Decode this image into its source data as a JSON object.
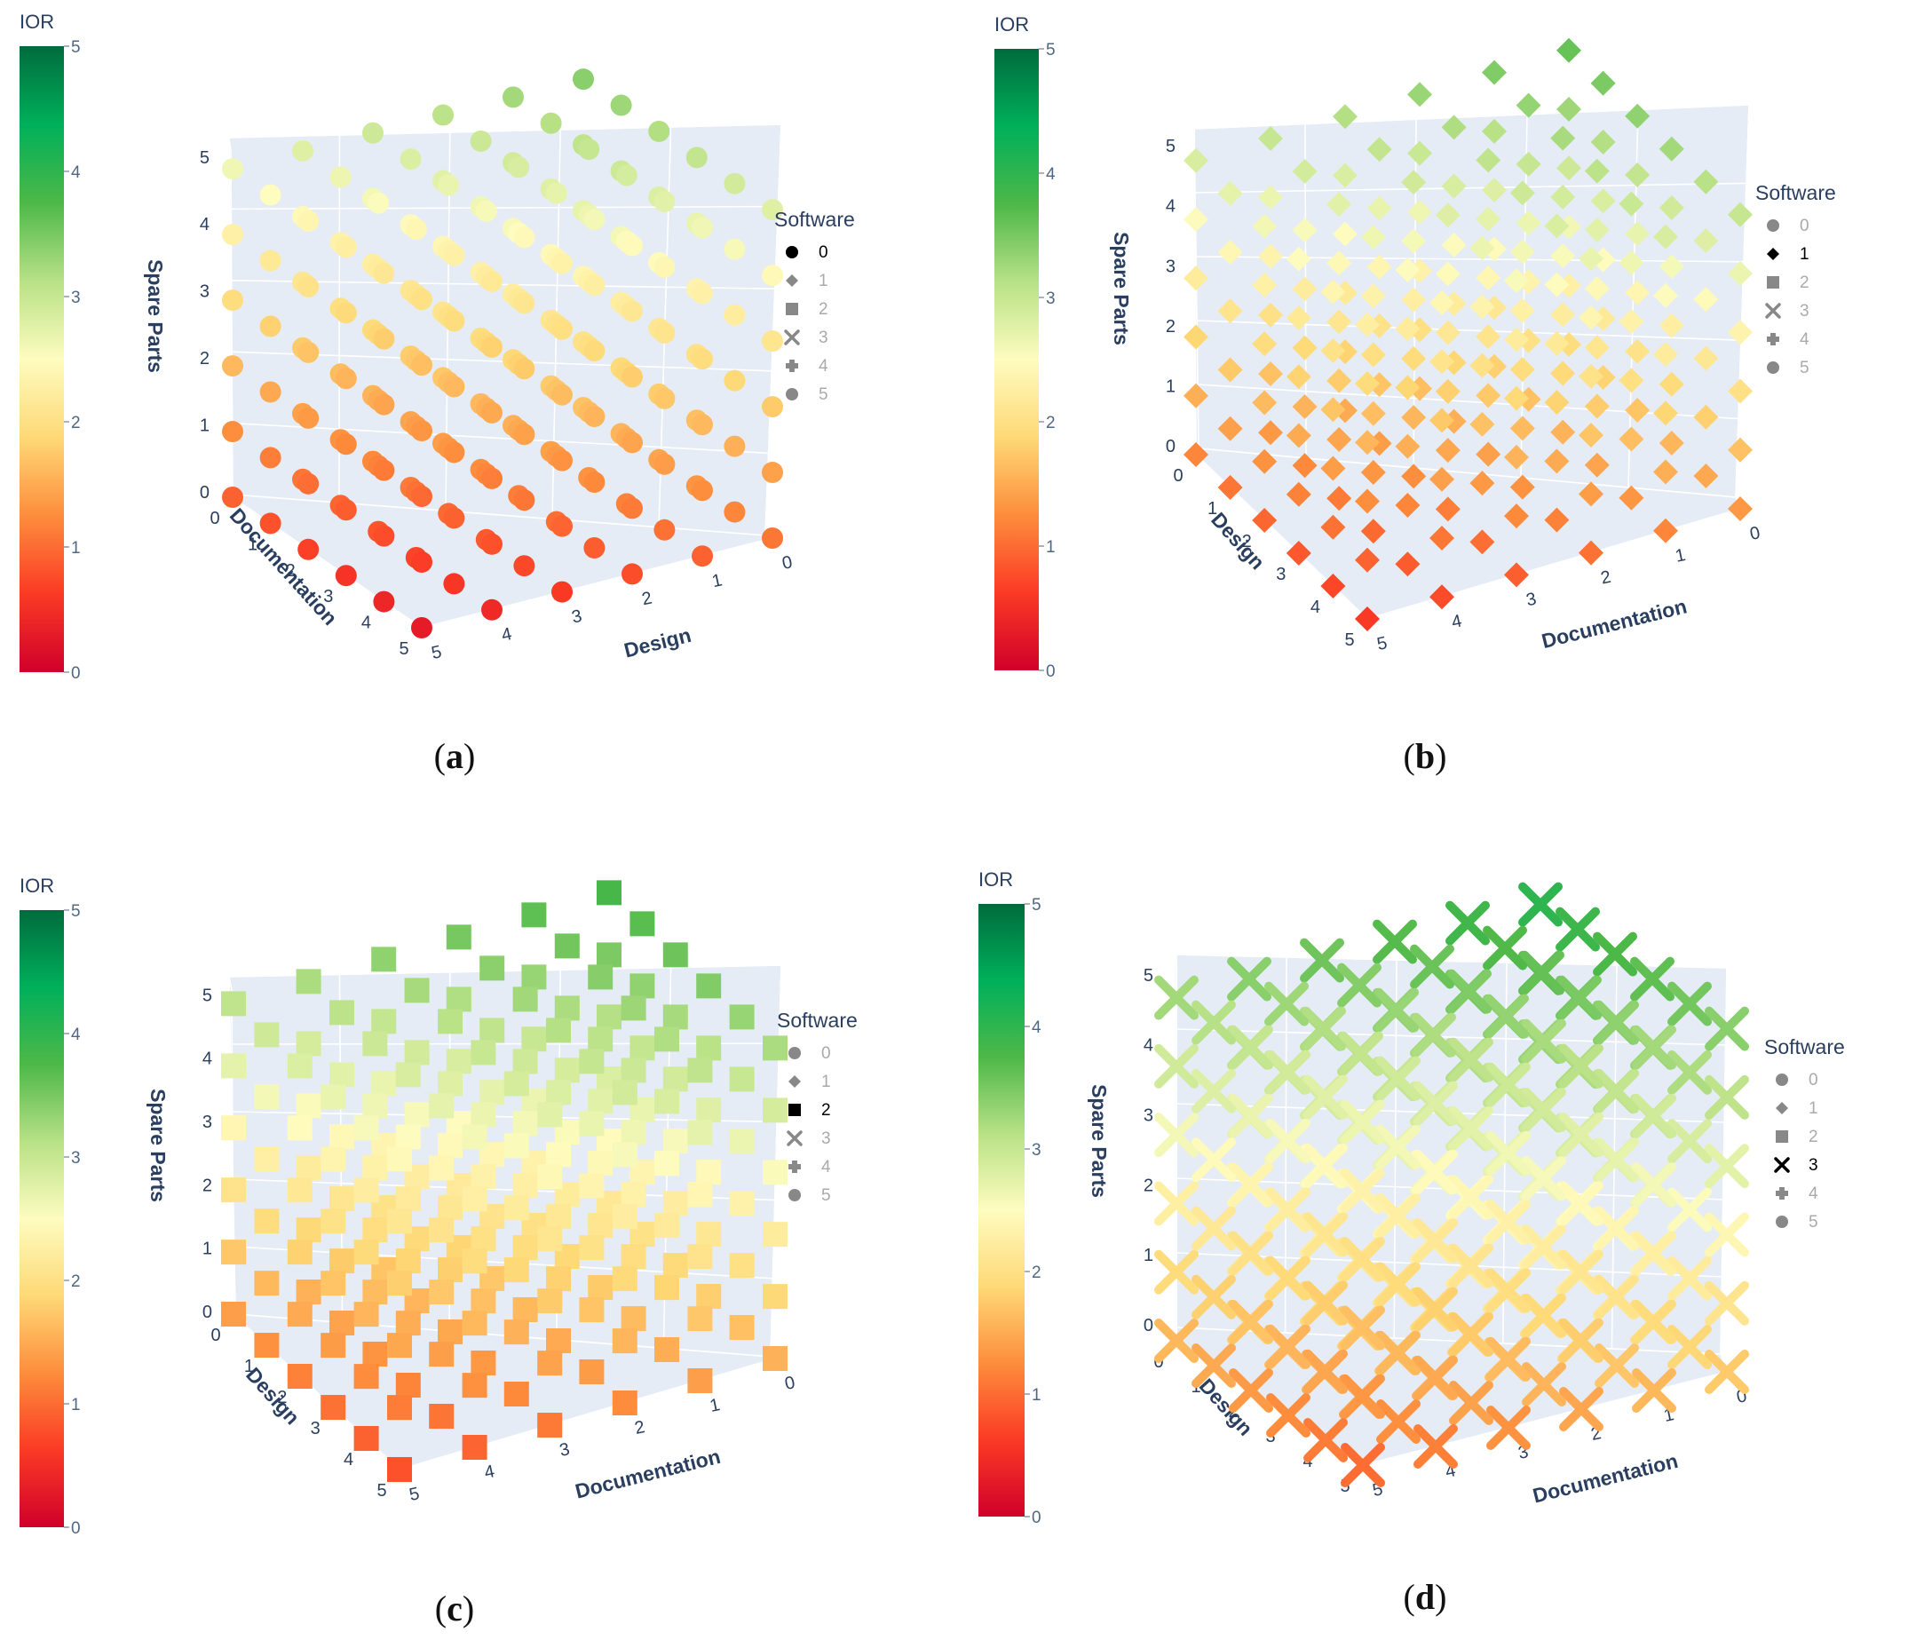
{
  "legend": {
    "title": "Software",
    "entries": [
      "0",
      "1",
      "2",
      "3",
      "4",
      "5"
    ],
    "symbols": [
      "circle",
      "diamond",
      "square",
      "x",
      "cross",
      "circle"
    ]
  },
  "colorbar": {
    "title": "IOR",
    "ticks": [
      "0",
      "1",
      "2",
      "3",
      "4",
      "5"
    ],
    "range": [
      0,
      5
    ],
    "stops": [
      "#d0002a",
      "#fb3a25",
      "#fd8d3c",
      "#fed976",
      "#fefcbf",
      "#b8e186",
      "#4db848",
      "#00b05a",
      "#006b3d"
    ]
  },
  "chart_data": [
    {
      "panel": "(a)",
      "caption_letter": "a",
      "type": "scatter3d",
      "software_level": 0,
      "marker": "circle",
      "axes": {
        "x": {
          "title": "Design",
          "ticks": [
            "0",
            "1",
            "2",
            "3",
            "4",
            "5"
          ],
          "range": [
            0,
            5
          ]
        },
        "y": {
          "title": "Documentation",
          "ticks": [
            "0",
            "1",
            "2",
            "3",
            "4",
            "5"
          ],
          "range": [
            0,
            5
          ]
        },
        "z": {
          "title": "Spare Parts",
          "ticks": [
            "0",
            "1",
            "2",
            "3",
            "4",
            "5"
          ],
          "range": [
            0,
            5
          ]
        }
      },
      "ior_range": [
        0.3,
        3.4
      ]
    },
    {
      "panel": "(b)",
      "caption_letter": "b",
      "type": "scatter3d",
      "software_level": 1,
      "marker": "diamond",
      "axes": {
        "x": {
          "title": "Documentation",
          "ticks": [
            "0",
            "1",
            "2",
            "3",
            "4",
            "5"
          ],
          "range": [
            0,
            5
          ]
        },
        "y": {
          "title": "Design",
          "ticks": [
            "0",
            "1",
            "2",
            "3",
            "4",
            "5"
          ],
          "range": [
            0,
            5
          ]
        },
        "z": {
          "title": "Spare Parts",
          "ticks": [
            "0",
            "1",
            "2",
            "3",
            "4",
            "5"
          ],
          "range": [
            0,
            5
          ]
        }
      },
      "ior_range": [
        0.6,
        3.6
      ]
    },
    {
      "panel": "(c)",
      "caption_letter": "c",
      "type": "scatter3d",
      "software_level": 2,
      "marker": "square",
      "axes": {
        "x": {
          "title": "Documentation",
          "ticks": [
            "0",
            "1",
            "2",
            "3",
            "4",
            "5"
          ],
          "range": [
            0,
            5
          ]
        },
        "y": {
          "title": "Design",
          "ticks": [
            "0",
            "1",
            "2",
            "3",
            "4",
            "5"
          ],
          "range": [
            0,
            5
          ]
        },
        "z": {
          "title": "Spare Parts",
          "ticks": [
            "0",
            "1",
            "2",
            "3",
            "4",
            "5"
          ],
          "range": [
            0,
            5
          ]
        }
      },
      "ior_range": [
        0.8,
        3.8
      ]
    },
    {
      "panel": "(d)",
      "caption_letter": "d",
      "type": "scatter3d",
      "software_level": 3,
      "marker": "x",
      "axes": {
        "x": {
          "title": "Documentation",
          "ticks": [
            "0",
            "1",
            "2",
            "3",
            "4",
            "5"
          ],
          "range": [
            0,
            5
          ]
        },
        "y": {
          "title": "Design",
          "ticks": [
            "0",
            "1",
            "2",
            "3",
            "4",
            "5"
          ],
          "range": [
            0,
            5
          ]
        },
        "z": {
          "title": "Spare Parts",
          "ticks": [
            "0",
            "1",
            "2",
            "3",
            "4",
            "5"
          ],
          "range": [
            0,
            5
          ]
        }
      },
      "ior_range": [
        1.0,
        4.0
      ]
    }
  ]
}
